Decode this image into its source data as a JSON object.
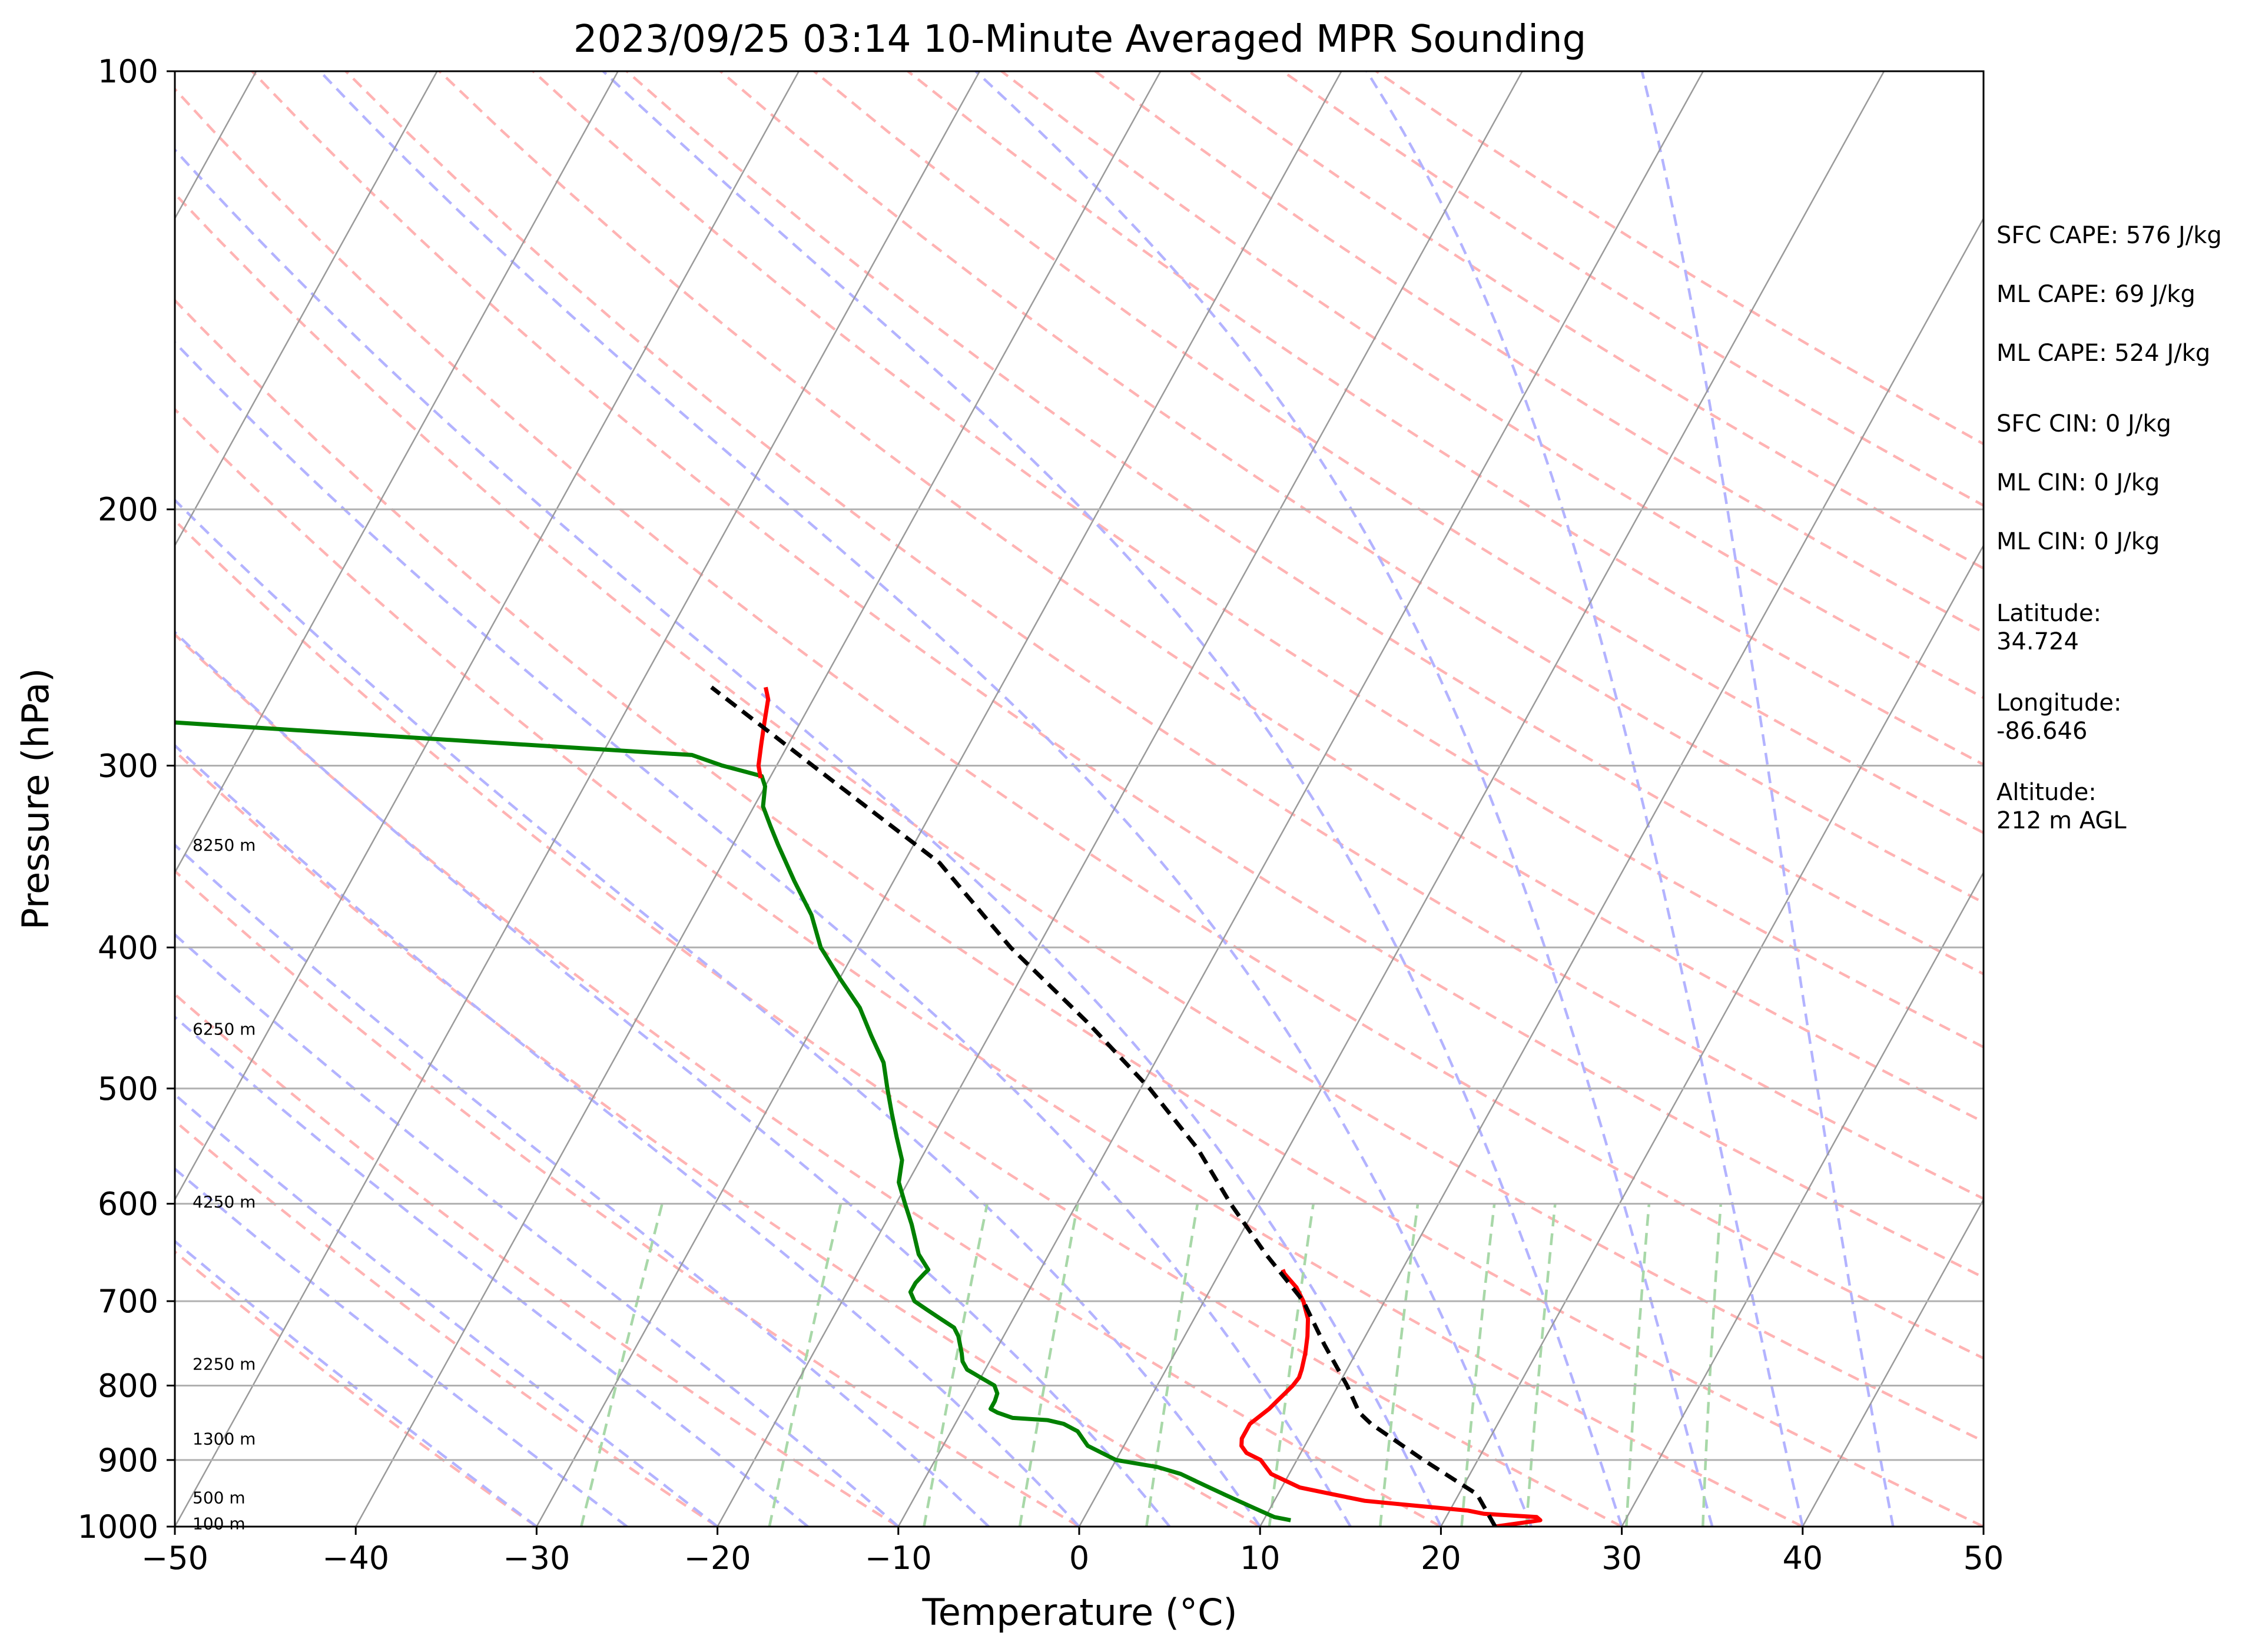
{
  "chart_data": {
    "type": "skew-t",
    "title": "2023/09/25 03:14 10-Minute Averaged MPR Sounding",
    "xlabel": "Temperature (°C)",
    "ylabel": "Pressure (hPa)",
    "xlim": [
      -50,
      50
    ],
    "ylim": [
      1000,
      100
    ],
    "y_scale": "log",
    "x_ticks": [
      "−50",
      "−40",
      "−30",
      "−20",
      "−10",
      "0",
      "10",
      "20",
      "30",
      "40",
      "50"
    ],
    "x_tick_values": [
      -50,
      -40,
      -30,
      -20,
      -10,
      0,
      10,
      20,
      30,
      40,
      50
    ],
    "y_ticks": [
      "100",
      "200",
      "300",
      "400",
      "500",
      "600",
      "700",
      "800",
      "900",
      "1000"
    ],
    "y_tick_values": [
      100,
      200,
      300,
      400,
      500,
      600,
      700,
      800,
      900,
      1000
    ],
    "grid": true,
    "height_labels": [
      {
        "text": "8250 m",
        "p": 340
      },
      {
        "text": "6250 m",
        "p": 455
      },
      {
        "text": "4250 m",
        "p": 598
      },
      {
        "text": "2250 m",
        "p": 773
      },
      {
        "text": "1300 m",
        "p": 870
      },
      {
        "text": "500 m",
        "p": 955
      },
      {
        "text": "100 m",
        "p": 995
      }
    ],
    "info_labels": [
      {
        "text": "SFC CAPE: 576 J/kg"
      },
      {
        "text": "ML CAPE: 69 J/kg"
      },
      {
        "text": "ML CAPE: 524 J/kg"
      },
      {
        "text": "SFC CIN: 0 J/kg"
      },
      {
        "text": "ML CIN: 0 J/kg"
      },
      {
        "text": "ML CIN: 0 J/kg"
      },
      {
        "text": "Latitude:",
        "value": "34.724"
      },
      {
        "text": "Longitude:",
        "value": "-86.646"
      },
      {
        "text": "Altitude:",
        "value": "212 m AGL"
      }
    ],
    "colors": {
      "temperature": "#ff0000",
      "dewpoint": "#008000",
      "parcel": "#000000",
      "isotherm": "#9a9a9a",
      "dry_adiabat": "#ffb3b3",
      "moist_adiabat": "#b3b3ff",
      "mixing_ratio": "#a8d8a8",
      "isobar": "#b0b0b0"
    },
    "series": [
      {
        "points": [
          [
            1000,
            23
          ],
          [
            990,
            25.3
          ],
          [
            985,
            25
          ],
          [
            980,
            22
          ],
          [
            975,
            21
          ],
          [
            970,
            19
          ],
          [
            965,
            17
          ],
          [
            960,
            15
          ],
          [
            950,
            13
          ],
          [
            940,
            11
          ],
          [
            930,
            10
          ],
          [
            920,
            9
          ],
          [
            910,
            8.5
          ],
          [
            900,
            8
          ],
          [
            890,
            7
          ],
          [
            880,
            6.5
          ],
          [
            870,
            6.3
          ],
          [
            860,
            6.3
          ],
          [
            850,
            6.3
          ],
          [
            840,
            6.6
          ],
          [
            830,
            6.9
          ],
          [
            820,
            7.1
          ],
          [
            810,
            7.3
          ],
          [
            800,
            7.5
          ],
          [
            790,
            7.6
          ],
          [
            780,
            7.5
          ],
          [
            760,
            7.2
          ],
          [
            740,
            6.8
          ],
          [
            720,
            6.3
          ],
          [
            700,
            5.5
          ],
          [
            685,
            4.7
          ],
          [
            670,
            3.6
          ],
          [
            666,
            3.4
          ]
        ]
      },
      {
        "points": [
          [
            990,
            11.5
          ],
          [
            985,
            10.5
          ],
          [
            980,
            10
          ],
          [
            970,
            9
          ],
          [
            960,
            8
          ],
          [
            950,
            7
          ],
          [
            940,
            6
          ],
          [
            930,
            5
          ],
          [
            920,
            4
          ],
          [
            910,
            2.5
          ],
          [
            900,
            0
          ],
          [
            880,
            -2
          ],
          [
            870,
            -2.5
          ],
          [
            860,
            -3
          ],
          [
            850,
            -4
          ],
          [
            845,
            -5
          ],
          [
            842,
            -7
          ],
          [
            835,
            -8
          ],
          [
            830,
            -8.5
          ],
          [
            820,
            -8.5
          ],
          [
            810,
            -8.6
          ],
          [
            800,
            -9
          ],
          [
            790,
            -10
          ],
          [
            780,
            -11
          ],
          [
            770,
            -11.5
          ],
          [
            760,
            -11.8
          ],
          [
            740,
            -12.5
          ],
          [
            730,
            -13
          ],
          [
            720,
            -14
          ],
          [
            710,
            -15
          ],
          [
            700,
            -16
          ],
          [
            690,
            -16.5
          ],
          [
            680,
            -16.5
          ],
          [
            670,
            -16.3
          ],
          [
            666,
            -16.2
          ],
          [
            650,
            -17.2
          ],
          [
            620,
            -18.5
          ],
          [
            600,
            -19.5
          ],
          [
            580,
            -20.5
          ],
          [
            560,
            -21
          ],
          [
            540,
            -22
          ],
          [
            520,
            -23
          ],
          [
            500,
            -24
          ],
          [
            480,
            -25
          ],
          [
            460,
            -26.5
          ],
          [
            440,
            -28
          ],
          [
            420,
            -30
          ],
          [
            400,
            -32
          ],
          [
            380,
            -33.5
          ],
          [
            360,
            -35.5
          ],
          [
            340,
            -37.5
          ],
          [
            330,
            -38.5
          ],
          [
            320,
            -39.5
          ],
          [
            310,
            -40
          ],
          [
            305,
            -40.5
          ],
          [
            300,
            -43
          ],
          [
            295,
            -45
          ],
          [
            290,
            -55
          ],
          [
            280,
            -75
          ],
          [
            275,
            -82
          ],
          [
            265,
            -88
          ]
        ]
      },
      {
        "points": [
          [
            306,
            -40.5
          ],
          [
            300,
            -41
          ],
          [
            290,
            -41.5
          ],
          [
            280,
            -42
          ],
          [
            270,
            -42.5
          ],
          [
            265,
            -43
          ]
        ]
      },
      {
        "points": [
          [
            1000,
            23
          ],
          [
            950,
            21
          ],
          [
            900,
            17
          ],
          [
            850,
            13
          ],
          [
            835,
            12
          ],
          [
            800,
            10.5
          ],
          [
            750,
            8
          ],
          [
            700,
            5.5
          ],
          [
            650,
            2
          ],
          [
            600,
            -1.5
          ],
          [
            550,
            -5
          ],
          [
            500,
            -9.5
          ],
          [
            450,
            -15
          ],
          [
            400,
            -21.5
          ],
          [
            350,
            -28
          ],
          [
            300,
            -38
          ],
          [
            265,
            -46
          ]
        ]
      }
    ]
  }
}
